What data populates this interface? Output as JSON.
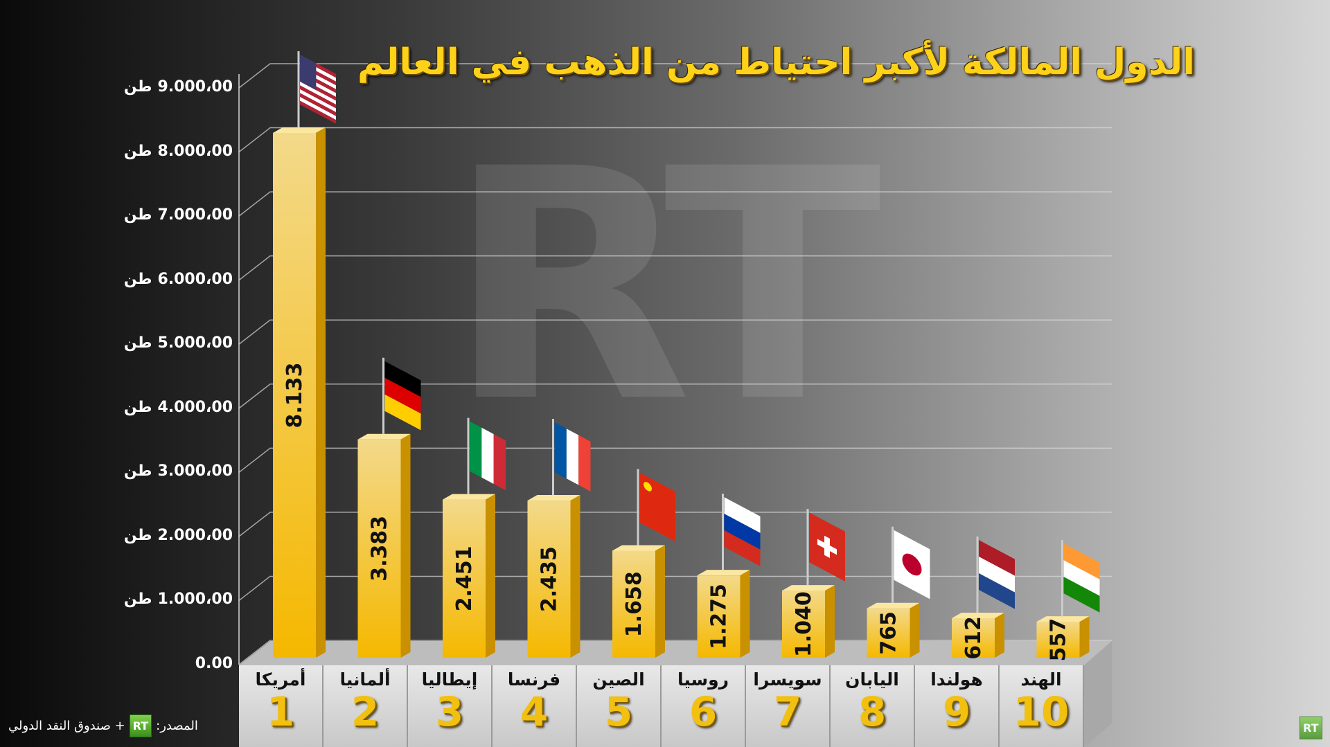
{
  "title": "الدول المالكة لأكبر احتياط من الذهب في العالم",
  "watermark": "RT",
  "source": {
    "prefix": "المصدر:",
    "logo": "RT",
    "suffix": "+ صندوق النقد الدولي"
  },
  "corner_logo": "RT",
  "colors": {
    "bar": "#f5c21a",
    "bar_side": "#c99000",
    "title": "#ffd21a"
  },
  "chart_data": {
    "type": "bar",
    "title": "الدول المالكة لأكبر احتياط من الذهب في العالم",
    "ylim": [
      0,
      9000
    ],
    "unit": "طن",
    "yticks": [
      {
        "value": 0,
        "label": "0.00",
        "unit": ""
      },
      {
        "value": 1000,
        "label": "1.000،00",
        "unit": "طن"
      },
      {
        "value": 2000,
        "label": "2.000،00",
        "unit": "طن"
      },
      {
        "value": 3000,
        "label": "3.000،00",
        "unit": "طن"
      },
      {
        "value": 4000,
        "label": "4.000،00",
        "unit": "طن"
      },
      {
        "value": 5000,
        "label": "5.000،00",
        "unit": "طن"
      },
      {
        "value": 6000,
        "label": "6.000،00",
        "unit": "طن"
      },
      {
        "value": 7000,
        "label": "7.000،00",
        "unit": "طن"
      },
      {
        "value": 8000,
        "label": "8.000،00",
        "unit": "طن"
      },
      {
        "value": 9000,
        "label": "9.000،00",
        "unit": "طن"
      }
    ],
    "grid": true,
    "categories": [
      "أمريكا",
      "ألمانيا",
      "إيطاليا",
      "فرنسا",
      "الصين",
      "روسيا",
      "سويسرا",
      "اليابان",
      "هولندا",
      "الهند"
    ],
    "ranks": [
      "1",
      "2",
      "3",
      "4",
      "5",
      "6",
      "7",
      "8",
      "9",
      "10"
    ],
    "values": [
      8133,
      3383,
      2451,
      2435,
      1658,
      1275,
      1040,
      765,
      612,
      557
    ],
    "value_labels": [
      "8.133",
      "3.383",
      "2.451",
      "2.435",
      "1.658",
      "1.275",
      "1.040",
      "765",
      "612",
      "557"
    ],
    "flags": [
      {
        "country": "usa",
        "type": "usa"
      },
      {
        "country": "germany",
        "type": "h",
        "colors": [
          "#000000",
          "#dd0000",
          "#ffce00"
        ]
      },
      {
        "country": "italy",
        "type": "v",
        "colors": [
          "#009246",
          "#ffffff",
          "#ce2b37"
        ]
      },
      {
        "country": "france",
        "type": "v",
        "colors": [
          "#0055a4",
          "#ffffff",
          "#ef4135"
        ]
      },
      {
        "country": "china",
        "type": "china",
        "colors": [
          "#de2910",
          "#ffde00"
        ]
      },
      {
        "country": "russia",
        "type": "h",
        "colors": [
          "#ffffff",
          "#0039a6",
          "#d52b1e"
        ]
      },
      {
        "country": "switzerland",
        "type": "swiss",
        "colors": [
          "#d52b1e",
          "#ffffff"
        ]
      },
      {
        "country": "japan",
        "type": "japan",
        "colors": [
          "#ffffff",
          "#bc002d"
        ]
      },
      {
        "country": "netherlands",
        "type": "h",
        "colors": [
          "#ae1c28",
          "#ffffff",
          "#21468b"
        ]
      },
      {
        "country": "india",
        "type": "h",
        "colors": [
          "#ff9933",
          "#ffffff",
          "#138808"
        ]
      }
    ]
  }
}
